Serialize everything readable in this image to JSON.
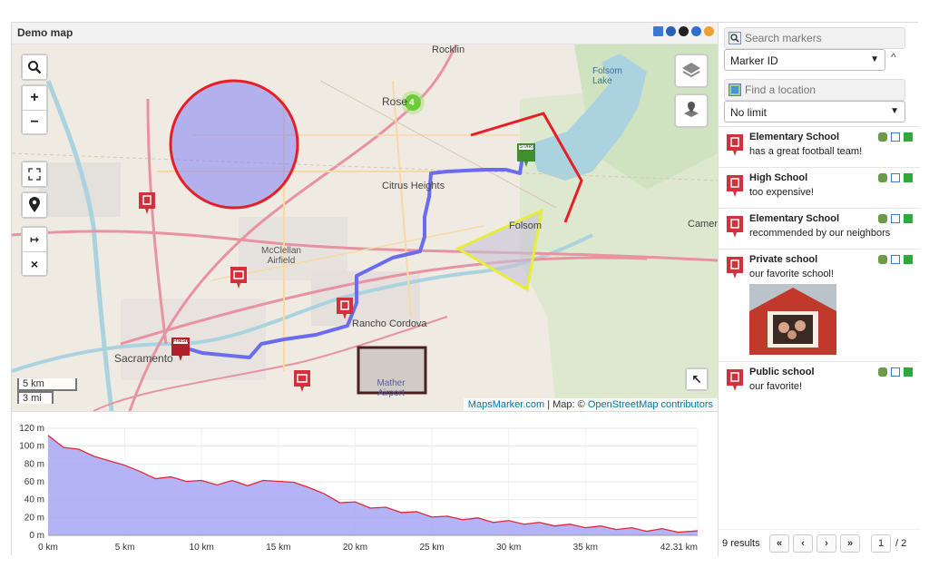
{
  "map": {
    "title": "Demo map",
    "cluster_count": "4",
    "scale_km": "5 km",
    "scale_mi": "3 mi",
    "attribution_link1": "MapsMarker.com",
    "attribution_sep": " | Map: © ",
    "attribution_link2": "OpenStreetMap contributors",
    "labels": {
      "rocklin": "Rocklin",
      "roseville": "Rose",
      "citrus_heights": "Citrus Heights",
      "folsom": "Folsom",
      "folsom_lake": "Folsom Lake",
      "cameron": "Camero",
      "mcclellan": "McClellan Airfield",
      "rancho_cordova": "Rancho Cordova",
      "sacramento": "Sacramento",
      "mather": "Mather Airport",
      "start": "START",
      "finish": "FINISH"
    },
    "zoom_in": "+",
    "zoom_out": "−",
    "close": "×",
    "arrow": "↦",
    "collapse": "↖"
  },
  "elevation": {
    "y_ticks": [
      "120 m",
      "100 m",
      "80 m",
      "60 m",
      "40 m",
      "20 m",
      "0 m"
    ],
    "x_ticks": [
      "0 km",
      "5 km",
      "10 km",
      "15 km",
      "20 km",
      "25 km",
      "30 km",
      "35 km",
      "42.31 km"
    ],
    "colors": {
      "fill": "#a6a6f5",
      "line": "#e0283a"
    }
  },
  "panel": {
    "search_placeholder": "Search markers",
    "sort_by": "Marker ID",
    "sort_toggle": "^",
    "location_placeholder": "Find a location",
    "limit": "No limit",
    "markers": [
      {
        "name": "Elementary School",
        "description": "has a great football team!"
      },
      {
        "name": "High School",
        "description": "too expensive!"
      },
      {
        "name": "Elementary School",
        "description": "recommended by our neighbors"
      },
      {
        "name": "Private school",
        "description": "our favorite school!"
      },
      {
        "name": "Public school",
        "description": "our favorite!"
      }
    ],
    "results": "9 results",
    "pager": {
      "first": "«",
      "prev": "‹",
      "next": "›",
      "last": "»"
    },
    "page": "1",
    "page_total": "/ 2"
  },
  "colors": {
    "marker_red": "#d0313a",
    "route": "#6b6bf0",
    "circle": "#e81e26"
  }
}
